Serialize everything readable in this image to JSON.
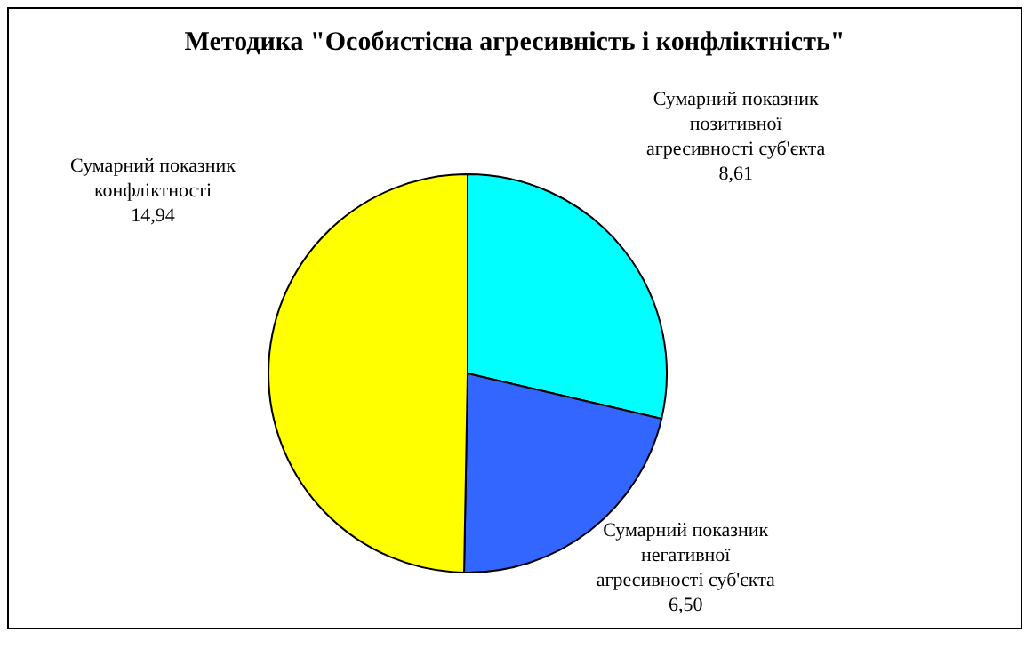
{
  "chart_data": {
    "type": "pie",
    "title": "Методика \"Особистісна агресивність і конфліктність\"",
    "categories": [
      "Сумарний показник позитивної агресивності суб'єкта",
      "Сумарний показник негативної агресивності суб'єкта",
      "Сумарний показник конфліктності"
    ],
    "values": [
      8.61,
      6.5,
      14.94
    ],
    "value_labels": [
      "8,61",
      "6,50",
      "14,94"
    ],
    "colors": [
      "#00ffff",
      "#3366ff",
      "#ffff00"
    ]
  }
}
